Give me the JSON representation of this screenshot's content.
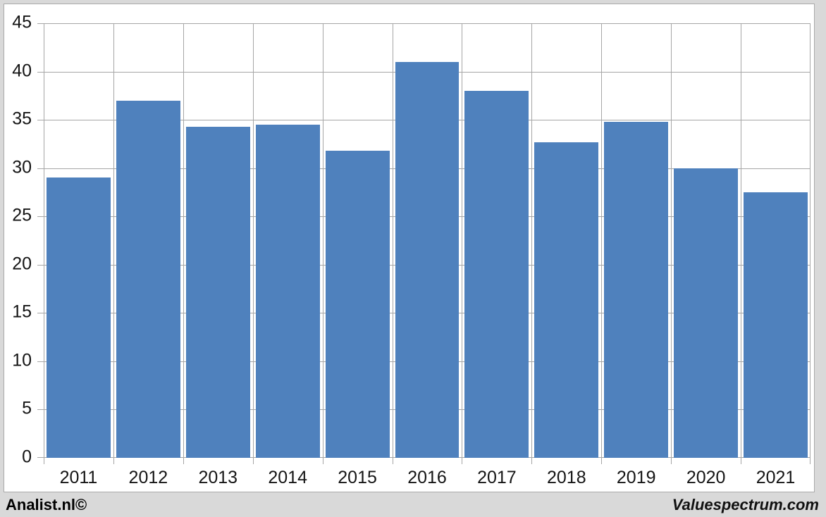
{
  "chart_data": {
    "type": "bar",
    "title": "",
    "xlabel": "",
    "ylabel": "",
    "categories": [
      "2011",
      "2012",
      "2013",
      "2014",
      "2015",
      "2016",
      "2017",
      "2018",
      "2019",
      "2020",
      "2021"
    ],
    "values": [
      29,
      37,
      34.3,
      34.5,
      31.8,
      41,
      38,
      32.7,
      34.8,
      30,
      27.5
    ],
    "ylim": [
      0,
      45
    ],
    "yticks": [
      0,
      5,
      10,
      15,
      20,
      25,
      30,
      35,
      40,
      45
    ],
    "grid": true,
    "legend": null,
    "bar_color": "#4f81bd",
    "gridline_color": "#a6a6a6",
    "plot_background": "#ffffff",
    "outer_background": "#d9d9d9",
    "bar_slot_fill_ratio": 0.92
  },
  "footer": {
    "left": "Analist.nl©",
    "right": "Valuespectrum.com"
  }
}
